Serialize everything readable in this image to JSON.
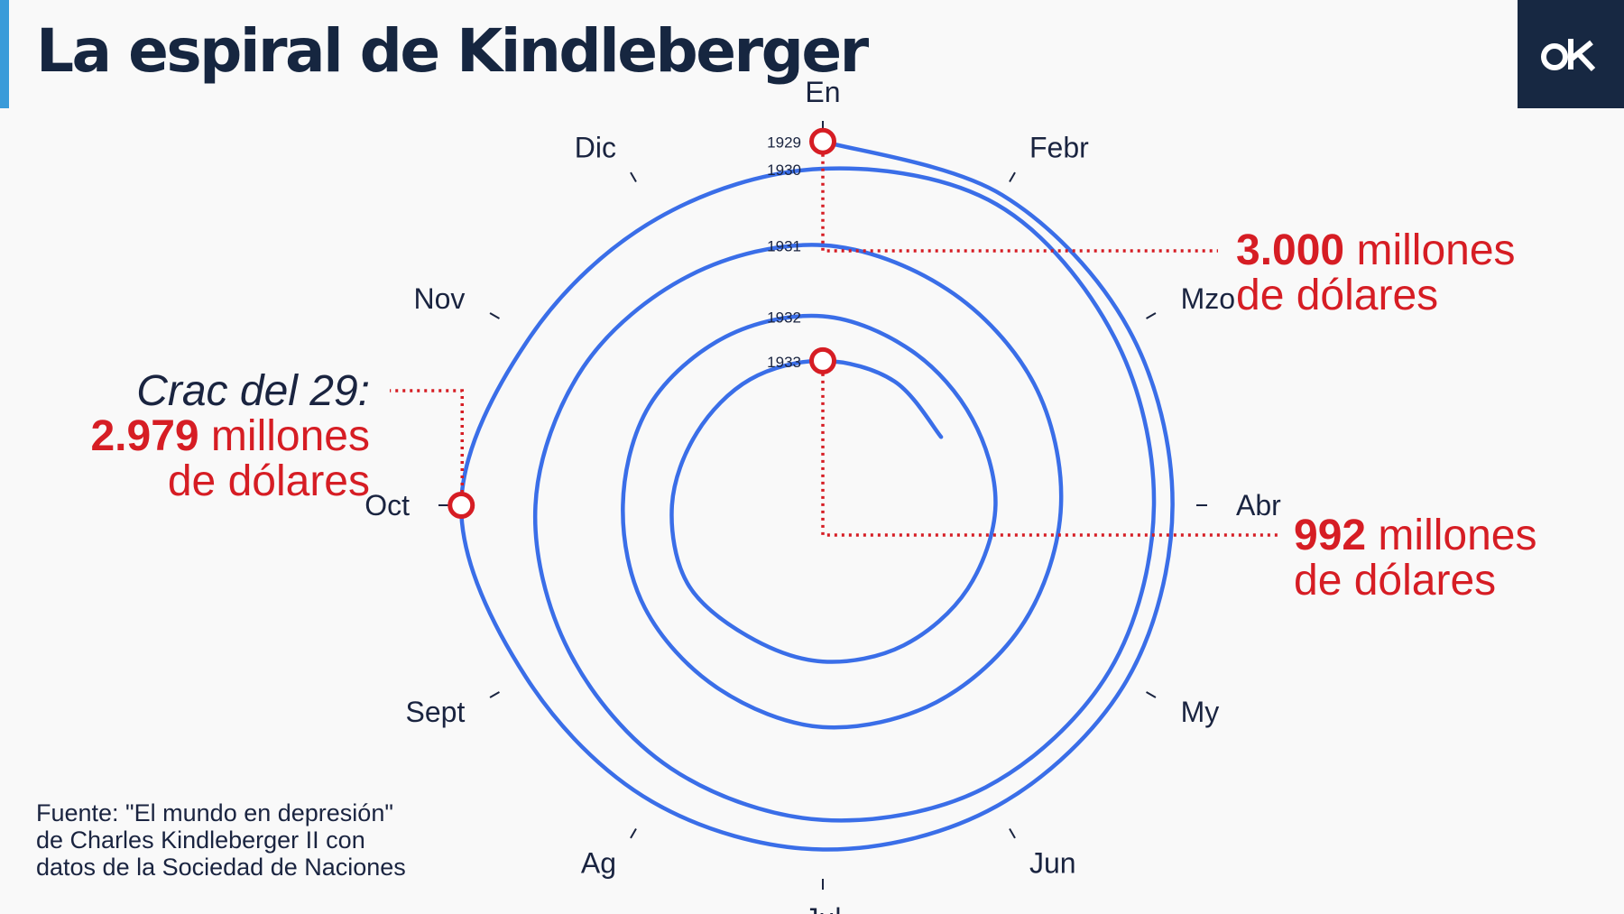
{
  "header": {
    "title": "La espiral de Kindleberger",
    "logo_text": "ok"
  },
  "source": {
    "lines": [
      "Fuente: \"El mundo en depresión\"",
      "de Charles Kindleberger II con",
      "datos de la Sociedad de Naciones"
    ]
  },
  "colors": {
    "spiral": "#3a6ee8",
    "highlight": "#d61d24",
    "dark": "#172842",
    "accent": "#3a9bd9"
  },
  "chart_data": {
    "type": "radial-spiral",
    "title": "La espiral de Kindleberger",
    "unit": "millones de dólares",
    "months": [
      "En",
      "Febr",
      "Mzo",
      "Abr",
      "My",
      "Jun",
      "Jul",
      "Ag",
      "Sept",
      "Oct",
      "Nov",
      "Dic"
    ],
    "years": [
      "1929",
      "1930",
      "1931",
      "1932",
      "1933"
    ],
    "series": [
      {
        "year": "1929",
        "values": [
          3000,
          2950,
          2900,
          2870,
          2880,
          2850,
          2820,
          2800,
          2810,
          2979,
          2760,
          2700
        ]
      },
      {
        "year": "1930",
        "values": [
          2750,
          2850,
          2750,
          2700,
          2700,
          2650,
          2550,
          2450,
          2350,
          2300,
          2200,
          2100
        ]
      },
      {
        "year": "1931",
        "values": [
          2050,
          1950,
          1900,
          1850,
          1800,
          1750,
          1700,
          1600,
          1550,
          1500,
          1500,
          1450
        ]
      },
      {
        "year": "1932",
        "values": [
          1400,
          1300,
          1250,
          1250,
          1200,
          1150,
          1100,
          1050,
          1100,
          1050,
          1000,
          1000
        ]
      },
      {
        "year": "1933",
        "values": [
          992,
          980,
          920
        ]
      }
    ],
    "annotations": [
      {
        "bold": "3.000",
        "rest": " millones",
        "line2": "de dólares"
      },
      {
        "lead": "Crac del 29:",
        "bold": "2.979",
        "rest": " millones",
        "line2": "de dólares"
      },
      {
        "bold": "992",
        "rest": " millones",
        "line2": "de dólares"
      }
    ]
  }
}
